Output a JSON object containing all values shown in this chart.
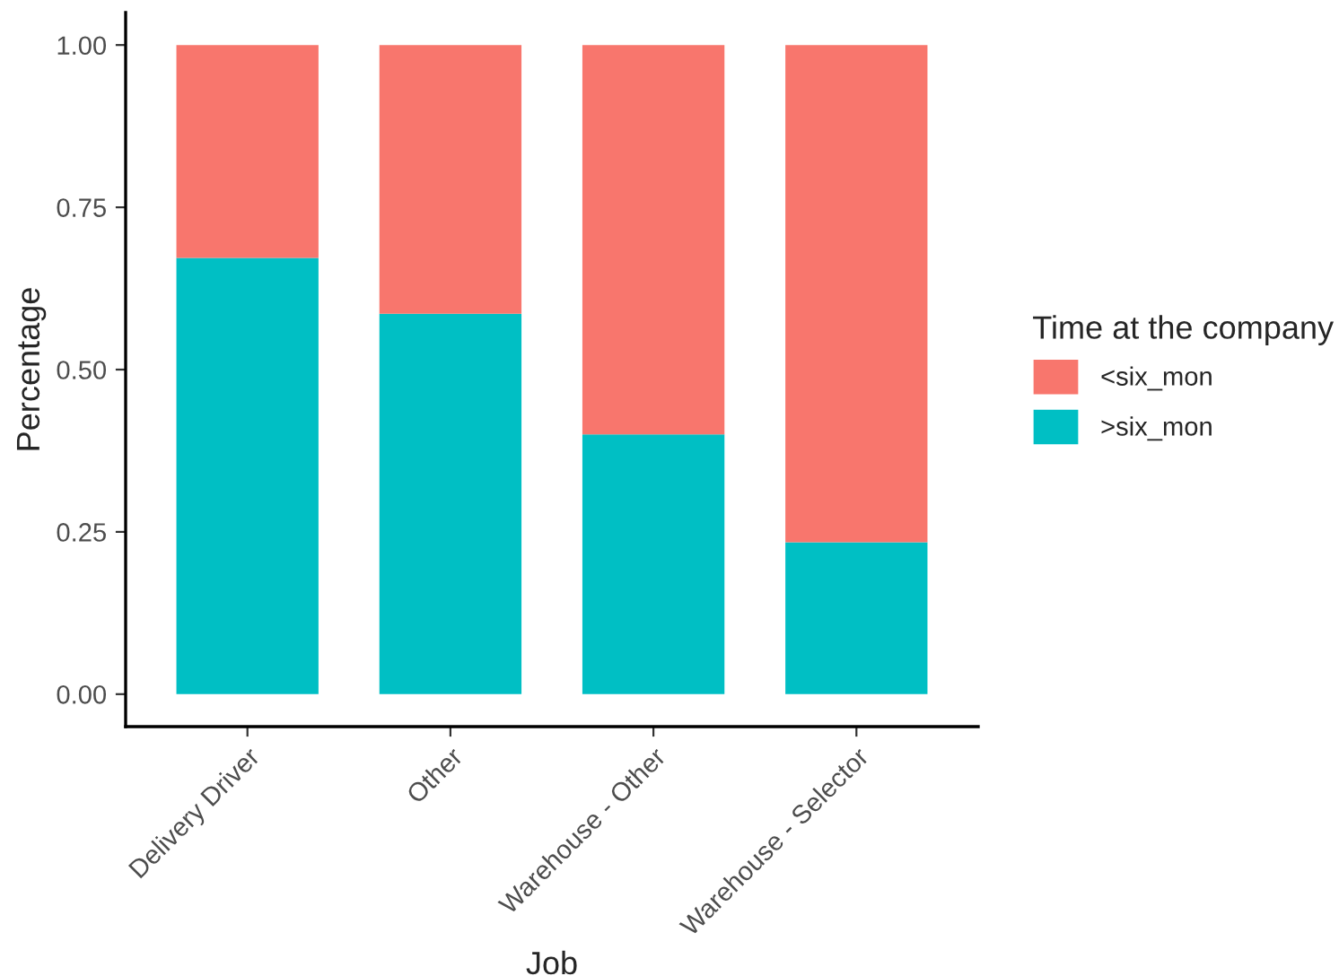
{
  "chart_data": {
    "type": "bar",
    "stacked": true,
    "xlabel": "Job",
    "ylabel": "Percentage",
    "legend_title": "Time at the company",
    "legend": "right",
    "categories": [
      "Delivery Driver",
      "Other",
      "Warehouse - Other",
      "Warehouse - Selector"
    ],
    "series": [
      {
        "name": ">six_mon",
        "color": "#00bfc4",
        "values": [
          0.672,
          0.586,
          0.4,
          0.234
        ]
      },
      {
        "name": "<six_mon",
        "color": "#f8766d",
        "values": [
          0.328,
          0.414,
          0.6,
          0.766
        ]
      }
    ],
    "ylim": [
      -0.05,
      1.05
    ],
    "yticks": [
      {
        "value": 0,
        "label": "0.00"
      },
      {
        "value": 0.25,
        "label": "0.25"
      },
      {
        "value": 0.5,
        "label": "0.50"
      },
      {
        "value": 0.75,
        "label": "0.75"
      },
      {
        "value": 1,
        "label": "1.00"
      }
    ],
    "grid": false
  }
}
